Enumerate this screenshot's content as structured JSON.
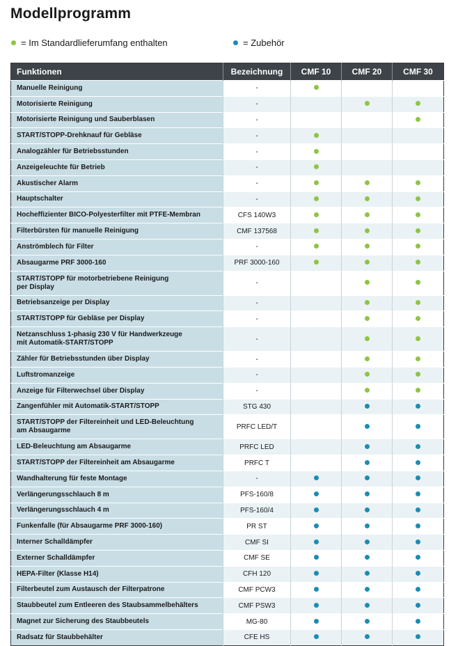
{
  "title": "Modellprogramm",
  "legend": [
    {
      "type": "standard",
      "text": "= Im Standardlieferumfang enthalten"
    },
    {
      "type": "accessory",
      "text": "= Zubehör"
    }
  ],
  "colors": {
    "standard": "#8dc63f",
    "accessory": "#1b8db2",
    "header_bg": "#3d4348",
    "function_bg": "#c9dde5"
  },
  "headers": [
    "Funktionen",
    "Bezeichnung",
    "CMF 10",
    "CMF 20",
    "CMF 30"
  ],
  "rows": [
    {
      "f": "Manuelle Reinigung",
      "b": "-",
      "m": [
        "standard",
        "",
        ""
      ]
    },
    {
      "f": "Motorisierte Reinigung",
      "b": "-",
      "m": [
        "",
        "standard",
        "standard"
      ]
    },
    {
      "f": "Motorisierte Reinigung und Sauberblasen",
      "b": "-",
      "m": [
        "",
        "",
        "standard"
      ]
    },
    {
      "f": "START/STOPP-Drehknauf für Gebläse",
      "b": "-",
      "m": [
        "standard",
        "",
        ""
      ]
    },
    {
      "f": "Analogzähler für Betriebsstunden",
      "b": "-",
      "m": [
        "standard",
        "",
        ""
      ]
    },
    {
      "f": "Anzeigeleuchte für Betrieb",
      "b": "-",
      "m": [
        "standard",
        "",
        ""
      ]
    },
    {
      "f": "Akustischer Alarm",
      "b": "-",
      "m": [
        "standard",
        "standard",
        "standard"
      ]
    },
    {
      "f": "Hauptschalter",
      "b": "-",
      "m": [
        "standard",
        "standard",
        "standard"
      ]
    },
    {
      "f": "Hocheffizienter BICO-Polyesterfilter mit PTFE-Membran",
      "b": "CFS 140W3",
      "m": [
        "standard",
        "standard",
        "standard"
      ]
    },
    {
      "f": "Filterbürsten für manuelle Reinigung",
      "b": "CMF 137568",
      "m": [
        "standard",
        "standard",
        "standard"
      ]
    },
    {
      "f": "Anströmblech für Filter",
      "b": "-",
      "m": [
        "standard",
        "standard",
        "standard"
      ]
    },
    {
      "f": "Absaugarme PRF 3000-160",
      "b": "PRF 3000-160",
      "m": [
        "standard",
        "standard",
        "standard"
      ]
    },
    {
      "f": "START/STOPP für motorbetriebene Reinigung\nper Display",
      "b": "-",
      "m": [
        "",
        "standard",
        "standard"
      ],
      "tall": true
    },
    {
      "f": "Betriebsanzeige per Display",
      "b": "-",
      "m": [
        "",
        "standard",
        "standard"
      ]
    },
    {
      "f": "START/STOPP für Gebläse per Display",
      "b": "-",
      "m": [
        "",
        "standard",
        "standard"
      ]
    },
    {
      "f": "Netzanschluss 1-phasig 230 V für Handwerkzeuge\nmit Automatik-START/STOPP",
      "b": "-",
      "m": [
        "",
        "standard",
        "standard"
      ],
      "tall": true
    },
    {
      "f": "Zähler für Betriebsstunden über Display",
      "b": "-",
      "m": [
        "",
        "standard",
        "standard"
      ]
    },
    {
      "f": "Luftstromanzeige",
      "b": "-",
      "m": [
        "",
        "standard",
        "standard"
      ]
    },
    {
      "f": "Anzeige für Filterwechsel über Display",
      "b": "-",
      "m": [
        "",
        "standard",
        "standard"
      ]
    },
    {
      "f": "Zangenfühler mit Automatik-START/STOPP",
      "b": "STG 430",
      "m": [
        "",
        "accessory",
        "accessory"
      ]
    },
    {
      "f": "START/STOPP der Filtereinheit und LED-Beleuchtung\nam Absaugarme",
      "b": "PRFC LED/T",
      "m": [
        "",
        "accessory",
        "accessory"
      ],
      "tall": true
    },
    {
      "f": "LED-Beleuchtung am Absaugarme",
      "b": "PRFC LED",
      "m": [
        "",
        "accessory",
        "accessory"
      ]
    },
    {
      "f": "START/STOPP der Filtereinheit am Absaugarme",
      "b": "PRFC T",
      "m": [
        "",
        "accessory",
        "accessory"
      ]
    },
    {
      "f": "Wandhalterung für feste Montage",
      "b": "-",
      "m": [
        "accessory",
        "accessory",
        "accessory"
      ]
    },
    {
      "f": "Verlängerungsschlauch 8 m",
      "b": "PFS-160/8",
      "m": [
        "accessory",
        "accessory",
        "accessory"
      ]
    },
    {
      "f": "Verlängerungsschlauch 4 m",
      "b": "PFS-160/4",
      "m": [
        "accessory",
        "accessory",
        "accessory"
      ]
    },
    {
      "f": "Funkenfalle (für Absaugarme PRF 3000-160)",
      "b": "PR ST",
      "m": [
        "accessory",
        "accessory",
        "accessory"
      ]
    },
    {
      "f": "Interner Schalldämpfer",
      "b": "CMF SI",
      "m": [
        "accessory",
        "accessory",
        "accessory"
      ]
    },
    {
      "f": "Externer Schalldämpfer",
      "b": "CMF SE",
      "m": [
        "accessory",
        "accessory",
        "accessory"
      ]
    },
    {
      "f": "HEPA-Filter (Klasse H14)",
      "b": "CFH 120",
      "m": [
        "accessory",
        "accessory",
        "accessory"
      ]
    },
    {
      "f": "Filterbeutel zum Austausch der Filterpatrone",
      "b": "CMF PCW3",
      "m": [
        "accessory",
        "accessory",
        "accessory"
      ]
    },
    {
      "f": "Staubbeutel zum Entleeren des Staubsammelbehälters",
      "b": "CMF PSW3",
      "m": [
        "accessory",
        "accessory",
        "accessory"
      ]
    },
    {
      "f": "Magnet zur Sicherung des Staubbeutels",
      "b": "MG-80",
      "m": [
        "accessory",
        "accessory",
        "accessory"
      ]
    },
    {
      "f": "Radsatz für Staubbehälter",
      "b": "CFE HS",
      "m": [
        "accessory",
        "accessory",
        "accessory"
      ]
    }
  ]
}
